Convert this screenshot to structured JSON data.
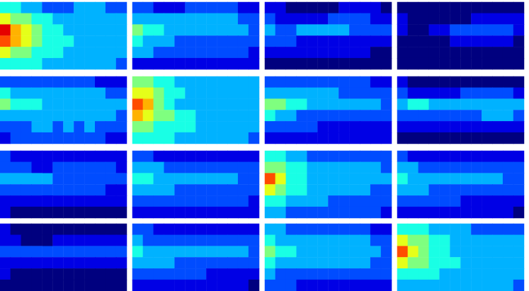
{
  "chart_data": [
    {
      "type": "heatmap",
      "tick_labels": false,
      "color_range": [
        0,
        10
      ],
      "cells": [
        [
          4,
          4,
          3,
          3,
          2,
          2,
          2,
          3,
          3,
          3,
          2,
          2
        ],
        [
          6,
          5,
          5,
          4,
          4,
          3,
          3,
          3,
          3,
          3,
          3,
          3
        ],
        [
          9,
          7,
          6,
          5,
          4,
          4,
          3,
          3,
          3,
          3,
          3,
          3
        ],
        [
          8,
          7,
          6,
          5,
          4,
          4,
          4,
          3,
          3,
          3,
          3,
          3
        ],
        [
          6,
          5,
          5,
          4,
          4,
          4,
          3,
          3,
          3,
          3,
          3,
          3
        ],
        [
          4,
          4,
          4,
          4,
          3,
          3,
          3,
          3,
          3,
          3,
          3,
          2
        ]
      ]
    },
    {
      "type": "heatmap",
      "tick_labels": false,
      "color_range": [
        0,
        10
      ],
      "cells": [
        [
          2,
          2,
          1,
          1,
          1,
          2,
          2,
          2,
          2,
          2,
          1,
          1
        ],
        [
          3,
          3,
          3,
          3,
          3,
          3,
          3,
          3,
          3,
          3,
          2,
          2
        ],
        [
          5,
          4,
          4,
          3,
          3,
          3,
          3,
          3,
          3,
          3,
          3,
          2
        ],
        [
          4,
          3,
          3,
          3,
          2,
          2,
          2,
          2,
          2,
          2,
          2,
          2
        ],
        [
          3,
          3,
          2,
          2,
          2,
          2,
          2,
          2,
          2,
          2,
          2,
          1
        ],
        [
          1,
          1,
          1,
          1,
          1,
          1,
          1,
          1,
          1,
          1,
          1,
          1
        ]
      ]
    },
    {
      "type": "heatmap",
      "tick_labels": false,
      "color_range": [
        0,
        10
      ],
      "cells": [
        [
          1,
          1,
          0,
          0,
          0,
          0,
          0,
          1,
          1,
          1,
          1,
          0
        ],
        [
          2,
          1,
          1,
          1,
          1,
          1,
          2,
          2,
          2,
          2,
          1,
          1
        ],
        [
          3,
          2,
          2,
          3,
          3,
          3,
          3,
          3,
          2,
          2,
          2,
          2
        ],
        [
          2,
          2,
          2,
          1,
          1,
          1,
          1,
          1,
          1,
          1,
          1,
          1
        ],
        [
          1,
          1,
          1,
          1,
          1,
          1,
          1,
          1,
          1,
          1,
          0,
          0
        ],
        [
          0,
          0,
          0,
          0,
          0,
          0,
          0,
          0,
          0,
          0,
          0,
          0
        ]
      ]
    },
    {
      "type": "heatmap",
      "tick_labels": false,
      "color_range": [
        0,
        10
      ],
      "cells": [
        [
          0,
          0,
          0,
          0,
          0,
          0,
          0,
          0,
          0,
          0,
          0,
          0
        ],
        [
          1,
          0,
          0,
          0,
          0,
          0,
          0,
          1,
          1,
          1,
          1,
          1
        ],
        [
          1,
          0,
          0,
          1,
          1,
          2,
          2,
          2,
          2,
          2,
          2,
          1
        ],
        [
          0,
          0,
          0,
          0,
          0,
          1,
          1,
          1,
          1,
          1,
          1,
          0
        ],
        [
          0,
          0,
          0,
          0,
          0,
          0,
          0,
          0,
          0,
          0,
          0,
          0
        ],
        [
          0,
          0,
          0,
          0,
          0,
          0,
          0,
          0,
          0,
          0,
          0,
          0
        ]
      ]
    },
    {
      "type": "heatmap",
      "tick_labels": false,
      "color_range": [
        0,
        10
      ],
      "cells": [
        [
          2,
          2,
          2,
          2,
          2,
          2,
          2,
          2,
          2,
          1,
          1,
          1
        ],
        [
          4,
          3,
          3,
          3,
          3,
          3,
          3,
          3,
          3,
          3,
          2,
          2
        ],
        [
          5,
          4,
          4,
          4,
          3,
          3,
          3,
          3,
          3,
          3,
          3,
          3
        ],
        [
          3,
          3,
          3,
          3,
          3,
          3,
          3,
          3,
          3,
          3,
          3,
          2
        ],
        [
          2,
          2,
          2,
          3,
          3,
          2,
          3,
          2,
          3,
          2,
          2,
          2
        ],
        [
          1,
          2,
          2,
          2,
          2,
          2,
          2,
          2,
          2,
          2,
          1,
          1
        ]
      ]
    },
    {
      "type": "heatmap",
      "tick_labels": false,
      "color_range": [
        0,
        10
      ],
      "cells": [
        [
          5,
          5,
          4,
          4,
          3,
          3,
          3,
          3,
          3,
          3,
          3,
          3
        ],
        [
          6,
          6,
          5,
          4,
          4,
          3,
          3,
          3,
          3,
          3,
          3,
          3
        ],
        [
          8,
          7,
          5,
          4,
          3,
          3,
          3,
          3,
          3,
          3,
          3,
          3
        ],
        [
          7,
          6,
          5,
          5,
          4,
          4,
          3,
          3,
          3,
          3,
          3,
          3
        ],
        [
          5,
          5,
          4,
          4,
          4,
          4,
          3,
          3,
          3,
          3,
          3,
          3
        ],
        [
          4,
          4,
          4,
          4,
          3,
          3,
          3,
          3,
          3,
          3,
          3,
          2
        ]
      ]
    },
    {
      "type": "heatmap",
      "tick_labels": false,
      "color_range": [
        0,
        10
      ],
      "cells": [
        [
          2,
          2,
          2,
          2,
          2,
          2,
          2,
          2,
          2,
          2,
          1,
          1
        ],
        [
          3,
          3,
          3,
          3,
          3,
          3,
          3,
          2,
          2,
          2,
          2,
          2
        ],
        [
          5,
          5,
          4,
          4,
          3,
          3,
          3,
          3,
          3,
          3,
          3,
          2
        ],
        [
          4,
          3,
          3,
          2,
          2,
          2,
          2,
          2,
          2,
          2,
          2,
          2
        ],
        [
          2,
          2,
          2,
          2,
          2,
          1,
          1,
          1,
          1,
          1,
          1,
          1
        ],
        [
          1,
          1,
          1,
          1,
          1,
          1,
          1,
          1,
          1,
          1,
          1,
          1
        ]
      ]
    },
    {
      "type": "heatmap",
      "tick_labels": false,
      "color_range": [
        0,
        10
      ],
      "cells": [
        [
          1,
          0,
          0,
          0,
          0,
          0,
          0,
          0,
          0,
          0,
          0,
          0
        ],
        [
          2,
          1,
          1,
          1,
          1,
          1,
          2,
          2,
          2,
          2,
          2,
          1
        ],
        [
          3,
          4,
          4,
          3,
          3,
          3,
          3,
          3,
          3,
          3,
          3,
          3
        ],
        [
          2,
          2,
          2,
          2,
          2,
          2,
          2,
          2,
          3,
          3,
          3,
          2
        ],
        [
          1,
          1,
          1,
          1,
          1,
          1,
          1,
          1,
          1,
          1,
          1,
          1
        ],
        [
          0,
          0,
          0,
          0,
          0,
          0,
          0,
          0,
          0,
          0,
          0,
          0
        ]
      ]
    },
    {
      "type": "heatmap",
      "tick_labels": false,
      "color_range": [
        0,
        10
      ],
      "cells": [
        [
          2,
          1,
          1,
          1,
          1,
          1,
          1,
          1,
          1,
          1,
          1,
          1
        ],
        [
          2,
          2,
          2,
          1,
          1,
          2,
          2,
          2,
          2,
          2,
          2,
          1
        ],
        [
          3,
          3,
          3,
          3,
          3,
          2,
          2,
          2,
          2,
          2,
          2,
          2
        ],
        [
          2,
          2,
          2,
          2,
          2,
          2,
          2,
          2,
          2,
          2,
          1,
          1
        ],
        [
          1,
          1,
          1,
          1,
          1,
          1,
          1,
          1,
          1,
          1,
          1,
          1
        ],
        [
          1,
          0,
          0,
          0,
          0,
          0,
          0,
          0,
          0,
          0,
          0,
          0
        ]
      ]
    },
    {
      "type": "heatmap",
      "tick_labels": false,
      "color_range": [
        0,
        10
      ],
      "cells": [
        [
          2,
          2,
          1,
          1,
          1,
          1,
          1,
          1,
          1,
          1,
          1,
          1
        ],
        [
          3,
          3,
          3,
          2,
          2,
          2,
          2,
          2,
          2,
          2,
          2,
          2
        ],
        [
          4,
          4,
          3,
          3,
          3,
          3,
          3,
          3,
          3,
          3,
          2,
          2
        ],
        [
          3,
          3,
          3,
          3,
          2,
          2,
          2,
          2,
          2,
          2,
          2,
          2
        ],
        [
          2,
          2,
          2,
          2,
          2,
          2,
          2,
          2,
          2,
          2,
          2,
          1
        ],
        [
          1,
          1,
          1,
          1,
          1,
          1,
          1,
          1,
          1,
          1,
          1,
          1
        ]
      ]
    },
    {
      "type": "heatmap",
      "tick_labels": false,
      "color_range": [
        0,
        10
      ],
      "cells": [
        [
          4,
          4,
          3,
          3,
          2,
          2,
          2,
          2,
          2,
          2,
          2,
          2
        ],
        [
          5,
          5,
          4,
          4,
          3,
          3,
          3,
          3,
          3,
          3,
          3,
          2
        ],
        [
          8,
          6,
          4,
          4,
          3,
          3,
          3,
          3,
          3,
          3,
          3,
          3
        ],
        [
          6,
          5,
          4,
          4,
          3,
          3,
          3,
          3,
          3,
          3,
          2,
          2
        ],
        [
          4,
          4,
          3,
          3,
          3,
          3,
          2,
          2,
          2,
          2,
          2,
          2
        ],
        [
          3,
          3,
          2,
          2,
          2,
          2,
          2,
          2,
          2,
          2,
          2,
          1
        ]
      ]
    },
    {
      "type": "heatmap",
      "tick_labels": false,
      "color_range": [
        0,
        10
      ],
      "cells": [
        [
          2,
          1,
          1,
          1,
          1,
          1,
          1,
          1,
          1,
          1,
          1,
          1
        ],
        [
          3,
          3,
          2,
          2,
          2,
          2,
          2,
          2,
          2,
          2,
          2,
          2
        ],
        [
          4,
          3,
          3,
          3,
          3,
          3,
          3,
          3,
          3,
          3,
          2,
          2
        ],
        [
          3,
          3,
          3,
          2,
          2,
          2,
          2,
          2,
          2,
          2,
          2,
          2
        ],
        [
          2,
          2,
          2,
          2,
          2,
          2,
          1,
          1,
          1,
          1,
          1,
          1
        ],
        [
          1,
          1,
          1,
          1,
          1,
          1,
          1,
          1,
          1,
          1,
          1,
          0
        ]
      ]
    },
    {
      "type": "heatmap",
      "tick_labels": false,
      "color_range": [
        0,
        10
      ],
      "cells": [
        [
          1,
          0,
          0,
          0,
          0,
          0,
          0,
          0,
          0,
          0,
          0,
          0
        ],
        [
          1,
          1,
          0,
          0,
          0,
          1,
          1,
          1,
          1,
          1,
          1,
          1
        ],
        [
          2,
          2,
          2,
          2,
          2,
          2,
          2,
          2,
          2,
          2,
          2,
          2
        ],
        [
          1,
          1,
          1,
          1,
          1,
          1,
          1,
          1,
          1,
          1,
          1,
          1
        ],
        [
          1,
          0,
          0,
          0,
          0,
          0,
          0,
          0,
          0,
          0,
          0,
          0
        ],
        [
          0,
          0,
          0,
          0,
          0,
          0,
          0,
          0,
          0,
          0,
          0,
          0
        ]
      ]
    },
    {
      "type": "heatmap",
      "tick_labels": false,
      "color_range": [
        0,
        10
      ],
      "cells": [
        [
          2,
          2,
          1,
          1,
          1,
          1,
          1,
          1,
          1,
          1,
          1,
          1
        ],
        [
          3,
          2,
          2,
          2,
          2,
          2,
          2,
          2,
          2,
          2,
          2,
          2
        ],
        [
          4,
          3,
          3,
          3,
          3,
          3,
          3,
          3,
          3,
          3,
          3,
          2
        ],
        [
          3,
          3,
          3,
          3,
          2,
          2,
          2,
          2,
          2,
          2,
          2,
          2
        ],
        [
          2,
          2,
          2,
          2,
          2,
          2,
          2,
          1,
          1,
          1,
          1,
          1
        ],
        [
          1,
          1,
          1,
          1,
          1,
          1,
          1,
          1,
          1,
          1,
          1,
          0
        ]
      ]
    },
    {
      "type": "heatmap",
      "tick_labels": false,
      "color_range": [
        0,
        10
      ],
      "cells": [
        [
          3,
          3,
          2,
          2,
          2,
          2,
          2,
          2,
          2,
          2,
          1,
          1
        ],
        [
          4,
          3,
          3,
          3,
          3,
          3,
          3,
          3,
          3,
          3,
          2,
          2
        ],
        [
          5,
          4,
          4,
          3,
          3,
          3,
          3,
          3,
          3,
          3,
          3,
          2
        ],
        [
          4,
          3,
          3,
          3,
          3,
          3,
          3,
          3,
          3,
          3,
          2,
          2
        ],
        [
          3,
          2,
          2,
          2,
          2,
          2,
          2,
          2,
          2,
          2,
          2,
          2
        ],
        [
          2,
          2,
          2,
          1,
          1,
          1,
          1,
          1,
          1,
          1,
          1,
          1
        ]
      ]
    },
    {
      "type": "heatmap",
      "tick_labels": false,
      "color_range": [
        0,
        10
      ],
      "cells": [
        [
          4,
          4,
          4,
          3,
          3,
          3,
          3,
          2,
          2,
          2,
          2,
          2
        ],
        [
          6,
          5,
          5,
          4,
          4,
          3,
          3,
          3,
          3,
          3,
          3,
          3
        ],
        [
          8,
          6,
          5,
          4,
          4,
          3,
          3,
          3,
          3,
          3,
          3,
          3
        ],
        [
          6,
          5,
          5,
          4,
          4,
          4,
          3,
          3,
          3,
          3,
          3,
          3
        ],
        [
          4,
          4,
          4,
          4,
          3,
          3,
          3,
          3,
          3,
          3,
          3,
          3
        ],
        [
          3,
          3,
          3,
          3,
          3,
          3,
          3,
          3,
          3,
          3,
          3,
          2
        ]
      ]
    }
  ]
}
